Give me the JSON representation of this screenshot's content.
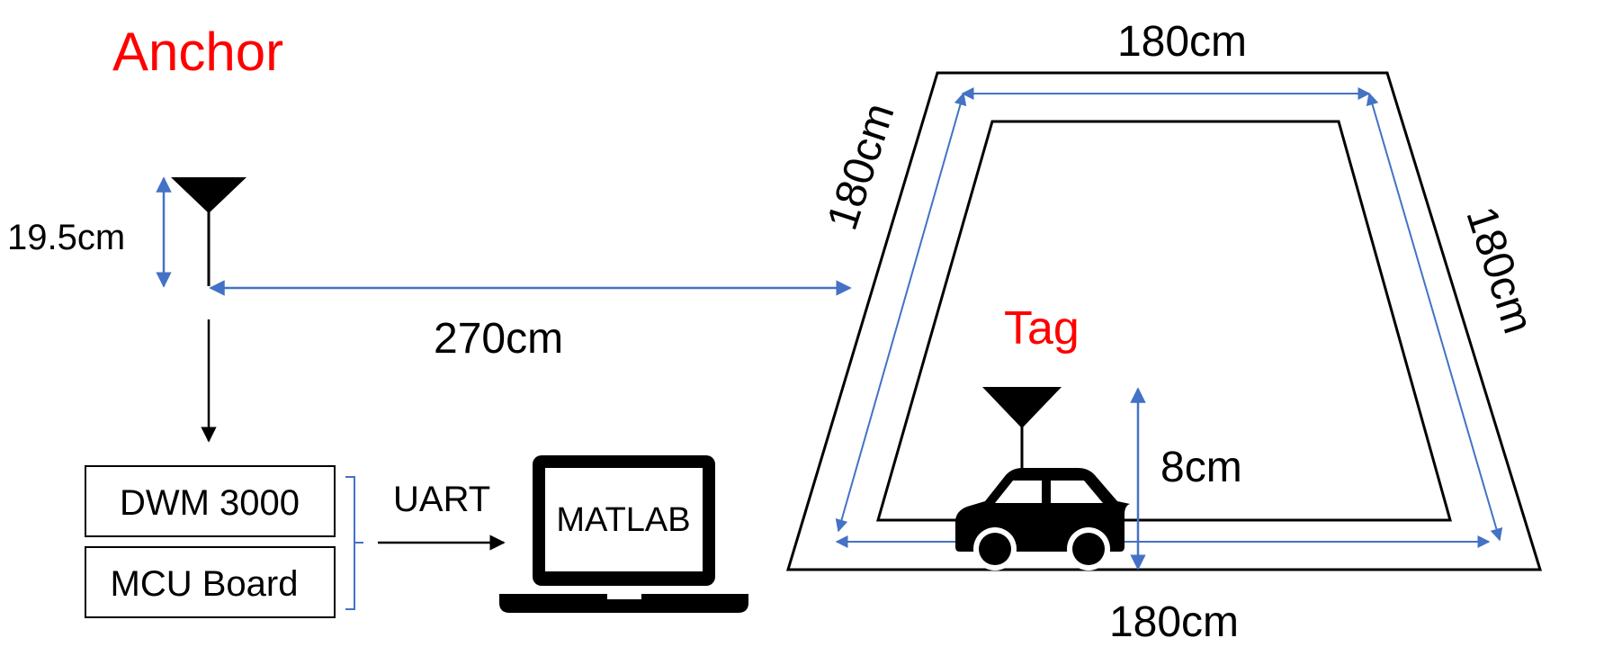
{
  "anchor": {
    "title": "Anchor",
    "height_label": "19.5cm",
    "distance_label": "270cm"
  },
  "hardware": {
    "module_label": "DWM 3000",
    "board_label": "MCU Board",
    "link_label": "UART",
    "software_label": "MATLAB"
  },
  "track": {
    "top_label": "180cm",
    "left_label": "180cm",
    "right_label": "180cm",
    "bottom_label": "180cm"
  },
  "tag": {
    "title": "Tag",
    "height_label": "8cm"
  },
  "colors": {
    "title": "#ff0000",
    "dimension_arrow": "#4472c4",
    "line": "#000000",
    "text": "#000000"
  },
  "icons": {
    "anchor_antenna": "antenna-icon",
    "tag_antenna": "antenna-icon",
    "computer": "laptop-icon",
    "vehicle": "car-icon"
  }
}
